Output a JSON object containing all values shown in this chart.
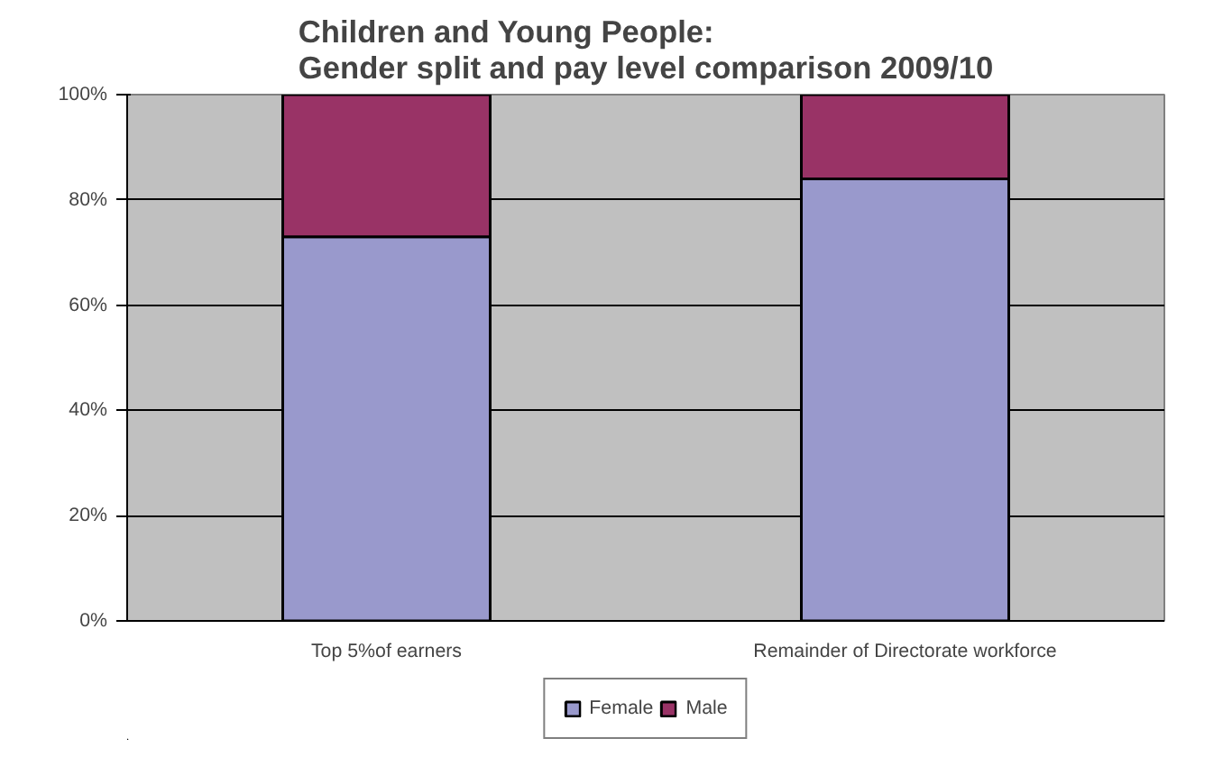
{
  "chart_data": {
    "type": "bar",
    "stacked": true,
    "title": "Children and Young People:\nGender split and pay level comparison 2009/10",
    "categories": [
      "Top 5%of earners",
      "Remainder of Directorate workforce"
    ],
    "series": [
      {
        "name": "Female",
        "color": "#9999cc",
        "values": [
          73,
          84
        ]
      },
      {
        "name": "Male",
        "color": "#993366",
        "values": [
          27,
          16
        ]
      }
    ],
    "ylim": [
      0,
      100
    ],
    "yticks": [
      {
        "value": 0,
        "label": "0%"
      },
      {
        "value": 20,
        "label": "20%"
      },
      {
        "value": 40,
        "label": "40%"
      },
      {
        "value": 60,
        "label": "60%"
      },
      {
        "value": 80,
        "label": "80%"
      },
      {
        "value": 100,
        "label": "100%"
      }
    ],
    "grid": "y",
    "legend": "bottom"
  }
}
